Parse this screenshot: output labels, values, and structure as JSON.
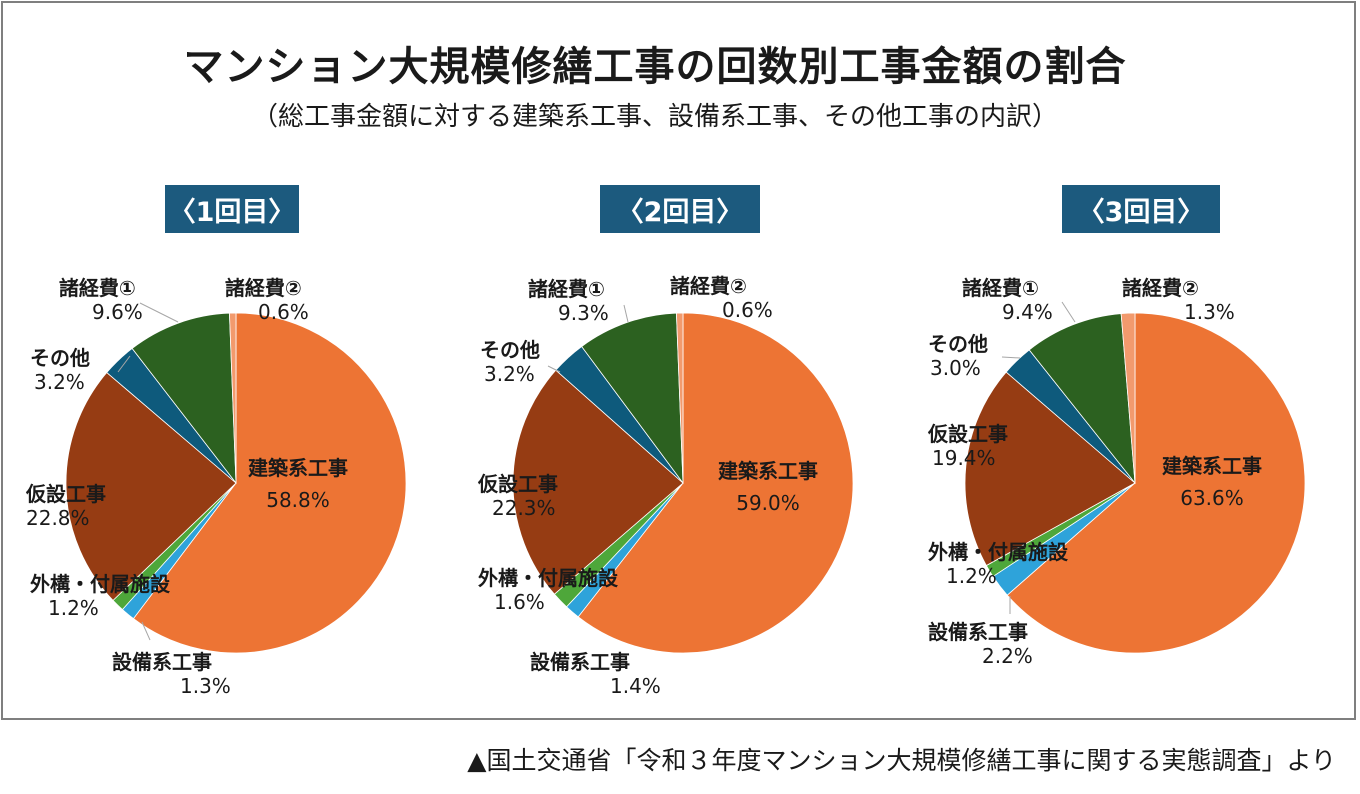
{
  "title": "マンション大規模修繕工事の回数別工事金額の割合",
  "subtitle": "（総工事金額に対する建築系工事、設備系工事、その他工事の内訳）",
  "source": "▲国土交通省「令和３年度マンション大規模修繕工事に関する実態調査」より",
  "colors": {
    "建築系工事": "#ed7434",
    "設備系工事": "#2ea3da",
    "外構・付属施設": "#4ea73a",
    "仮設工事": "#963c13",
    "その他": "#0e5a7c",
    "諸経費①": "#2c6120",
    "諸経費②": "#f29a6d"
  },
  "chart_data": [
    {
      "type": "pie",
      "title": "〈1回目〉",
      "slices": [
        {
          "label": "建築系工事",
          "value": 58.8,
          "display": "58.8%"
        },
        {
          "label": "設備系工事",
          "value": 1.3,
          "display": "1.3%"
        },
        {
          "label": "外構・付属施設",
          "value": 1.2,
          "display": "1.2%"
        },
        {
          "label": "仮設工事",
          "value": 22.8,
          "display": "22.8%"
        },
        {
          "label": "その他",
          "value": 3.2,
          "display": "3.2%"
        },
        {
          "label": "諸経費①",
          "value": 9.6,
          "display": "9.6%"
        },
        {
          "label": "諸経費②",
          "value": 0.6,
          "display": "0.6%"
        }
      ]
    },
    {
      "type": "pie",
      "title": "〈2回目〉",
      "slices": [
        {
          "label": "建築系工事",
          "value": 59.0,
          "display": "59.0%"
        },
        {
          "label": "設備系工事",
          "value": 1.4,
          "display": "1.4%"
        },
        {
          "label": "外構・付属施設",
          "value": 1.6,
          "display": "1.6%"
        },
        {
          "label": "仮設工事",
          "value": 22.3,
          "display": "22.3%"
        },
        {
          "label": "その他",
          "value": 3.2,
          "display": "3.2%"
        },
        {
          "label": "諸経費①",
          "value": 9.3,
          "display": "9.3%"
        },
        {
          "label": "諸経費②",
          "value": 0.6,
          "display": "0.6%"
        }
      ]
    },
    {
      "type": "pie",
      "title": "〈3回目〉",
      "slices": [
        {
          "label": "建築系工事",
          "value": 63.6,
          "display": "63.6%"
        },
        {
          "label": "設備系工事",
          "value": 2.2,
          "display": "2.2%"
        },
        {
          "label": "外構・付属施設",
          "value": 1.2,
          "display": "1.2%"
        },
        {
          "label": "仮設工事",
          "value": 19.4,
          "display": "19.4%"
        },
        {
          "label": "その他",
          "value": 3.0,
          "display": "3.0%"
        },
        {
          "label": "諸経費①",
          "value": 9.4,
          "display": "9.4%"
        },
        {
          "label": "諸経費②",
          "value": 1.3,
          "display": "1.3%"
        }
      ]
    }
  ]
}
